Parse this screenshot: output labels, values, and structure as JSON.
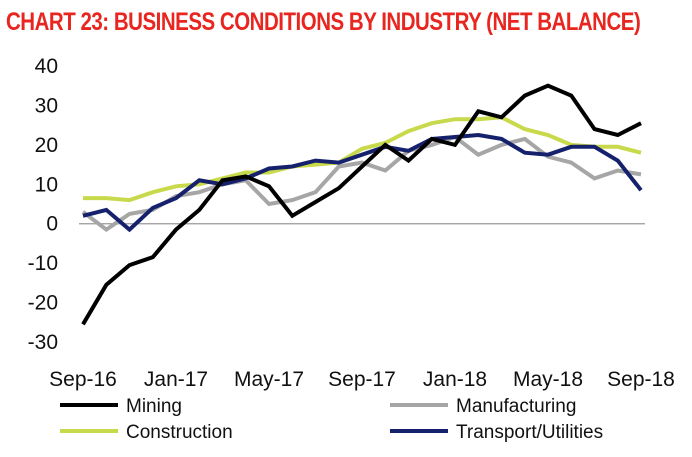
{
  "chart_data": {
    "type": "line",
    "title": "CHART 23: BUSINESS CONDITIONS BY INDUSTRY (NET BALANCE)",
    "xlabel": "",
    "ylabel": "",
    "ylim": [
      -30,
      40
    ],
    "yticks": [
      40,
      30,
      20,
      10,
      0,
      -10,
      -20,
      -30
    ],
    "x": [
      "Sep-16",
      "Oct-16",
      "Nov-16",
      "Dec-16",
      "Jan-17",
      "Feb-17",
      "Mar-17",
      "Apr-17",
      "May-17",
      "Jun-17",
      "Jul-17",
      "Aug-17",
      "Sep-17",
      "Oct-17",
      "Nov-17",
      "Dec-17",
      "Jan-18",
      "Feb-18",
      "Mar-18",
      "Apr-18",
      "May-18",
      "Jun-18",
      "Jul-18",
      "Aug-18",
      "Sep-18"
    ],
    "xtick_labels": [
      "Sep-16",
      "Jan-17",
      "May-17",
      "Sep-17",
      "Jan-18",
      "May-18",
      "Sep-18"
    ],
    "series": [
      {
        "name": "Mining",
        "color": "#000000",
        "values": [
          -25.5,
          -15.5,
          -10.5,
          -8.5,
          -1.5,
          3.5,
          11,
          12,
          9.5,
          2,
          5.5,
          9,
          14.5,
          20,
          16,
          21.5,
          20,
          28.5,
          27,
          32.5,
          35,
          32.5,
          24,
          22.5,
          25.5
        ]
      },
      {
        "name": "Manufacturing",
        "color": "#a6a6a6",
        "values": [
          3,
          -1.5,
          2.5,
          3.5,
          7,
          8,
          10,
          11,
          5,
          6,
          8,
          14.5,
          15.5,
          13.5,
          18.5,
          20,
          22,
          17.5,
          20,
          21.5,
          17,
          15.5,
          11.5,
          13.5,
          12.5
        ]
      },
      {
        "name": "Construction",
        "color": "#c8d94c",
        "values": [
          6.5,
          6.5,
          6,
          8,
          9.5,
          10,
          11.5,
          13,
          13,
          14.5,
          15,
          15.5,
          19,
          20.5,
          23.5,
          25.5,
          26.5,
          26.5,
          27,
          24,
          22.5,
          20,
          19.5,
          19.5,
          18
        ]
      },
      {
        "name": "Transport/Utilities",
        "color": "#16216e",
        "values": [
          2,
          3.5,
          -1.5,
          4,
          6.5,
          11,
          10,
          11.5,
          14,
          14.5,
          16,
          15.5,
          17.5,
          19.5,
          18.5,
          21.5,
          22,
          22.5,
          21.5,
          18,
          17.5,
          19.5,
          19.5,
          16,
          8.5
        ]
      }
    ],
    "legend": "bottom, two columns"
  }
}
